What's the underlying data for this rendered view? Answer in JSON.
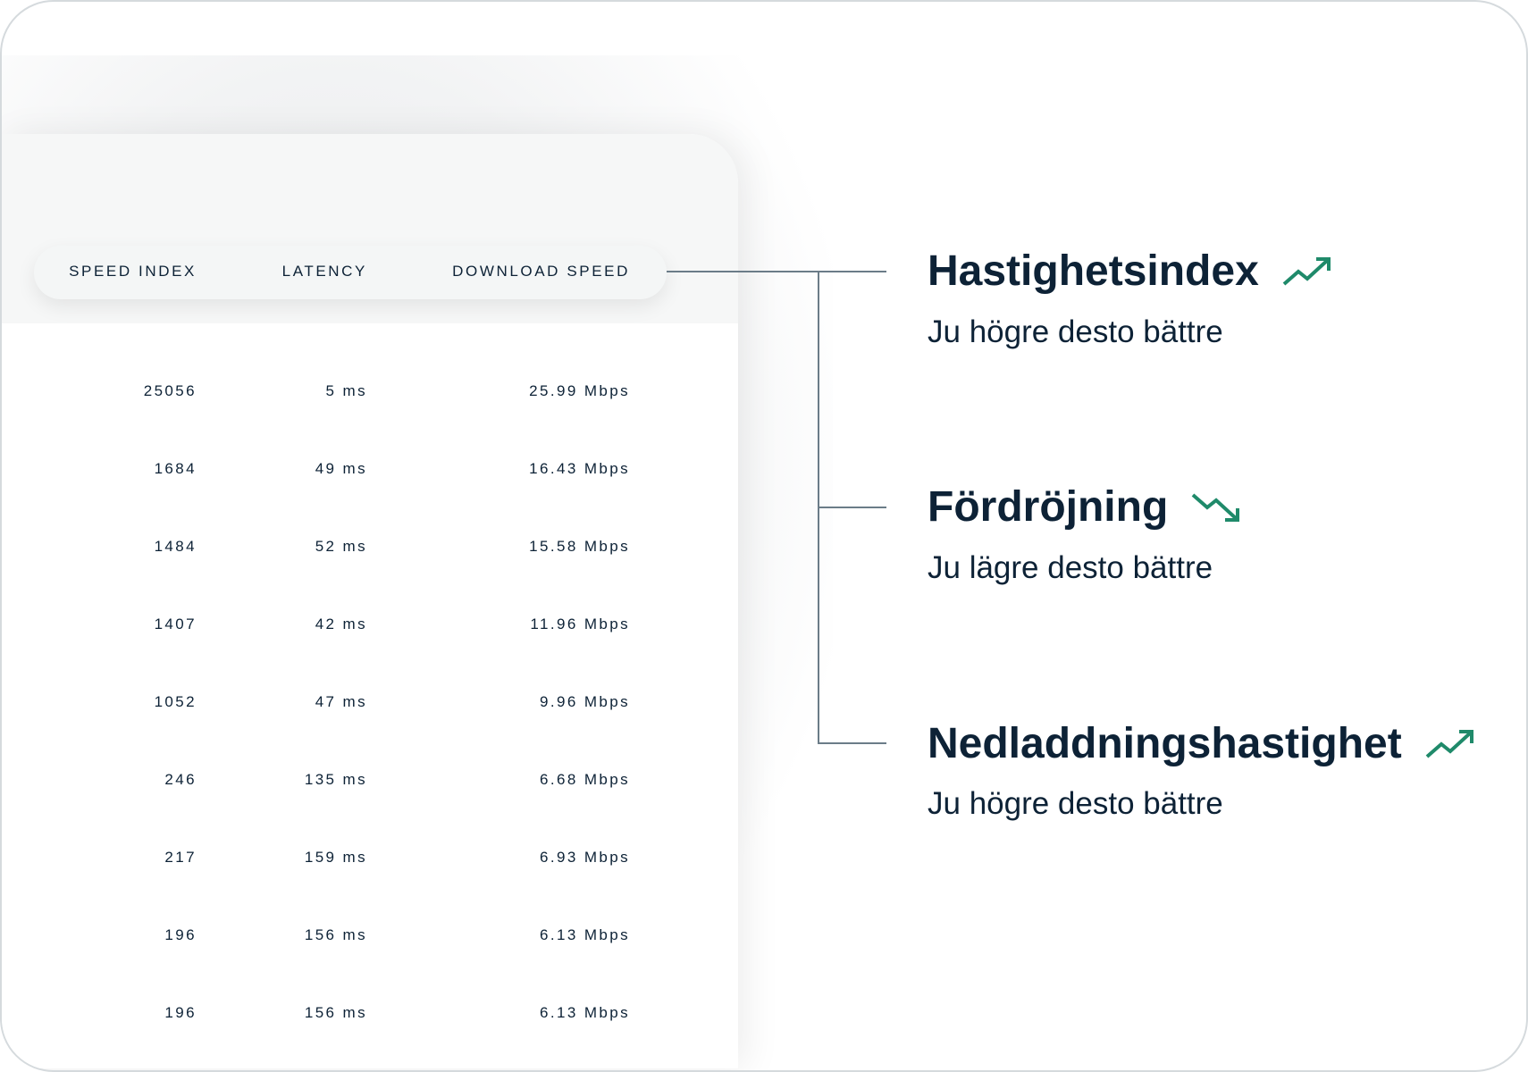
{
  "table": {
    "headers": [
      "SPEED INDEX",
      "LATENCY",
      "DOWNLOAD SPEED"
    ],
    "rows": [
      [
        "25056",
        "5 ms",
        "25.99 Mbps"
      ],
      [
        "1684",
        "49 ms",
        "16.43 Mbps"
      ],
      [
        "1484",
        "52 ms",
        "15.58 Mbps"
      ],
      [
        "1407",
        "42 ms",
        "11.96  Mbps"
      ],
      [
        "1052",
        "47 ms",
        "9.96 Mbps"
      ],
      [
        "246",
        "135 ms",
        "6.68 Mbps"
      ],
      [
        "217",
        "159 ms",
        "6.93 Mbps"
      ],
      [
        "196",
        "156 ms",
        "6.13 Mbps"
      ],
      [
        "196",
        "156 ms",
        "6.13 Mbps"
      ]
    ]
  },
  "legend": [
    {
      "title": "Hastighetsindex",
      "subtitle": "Ju högre desto bättre",
      "icon": "trend-up-icon"
    },
    {
      "title": "Fördröjning",
      "subtitle": "Ju lägre desto bättre",
      "icon": "trend-down-icon"
    },
    {
      "title": "Nedladdningshastighet",
      "subtitle": "Ju högre desto bättre",
      "icon": "trend-up-icon"
    }
  ],
  "colors": {
    "text": "#0d2236",
    "accent": "#1f8a6a",
    "connector": "#6b7c88"
  }
}
